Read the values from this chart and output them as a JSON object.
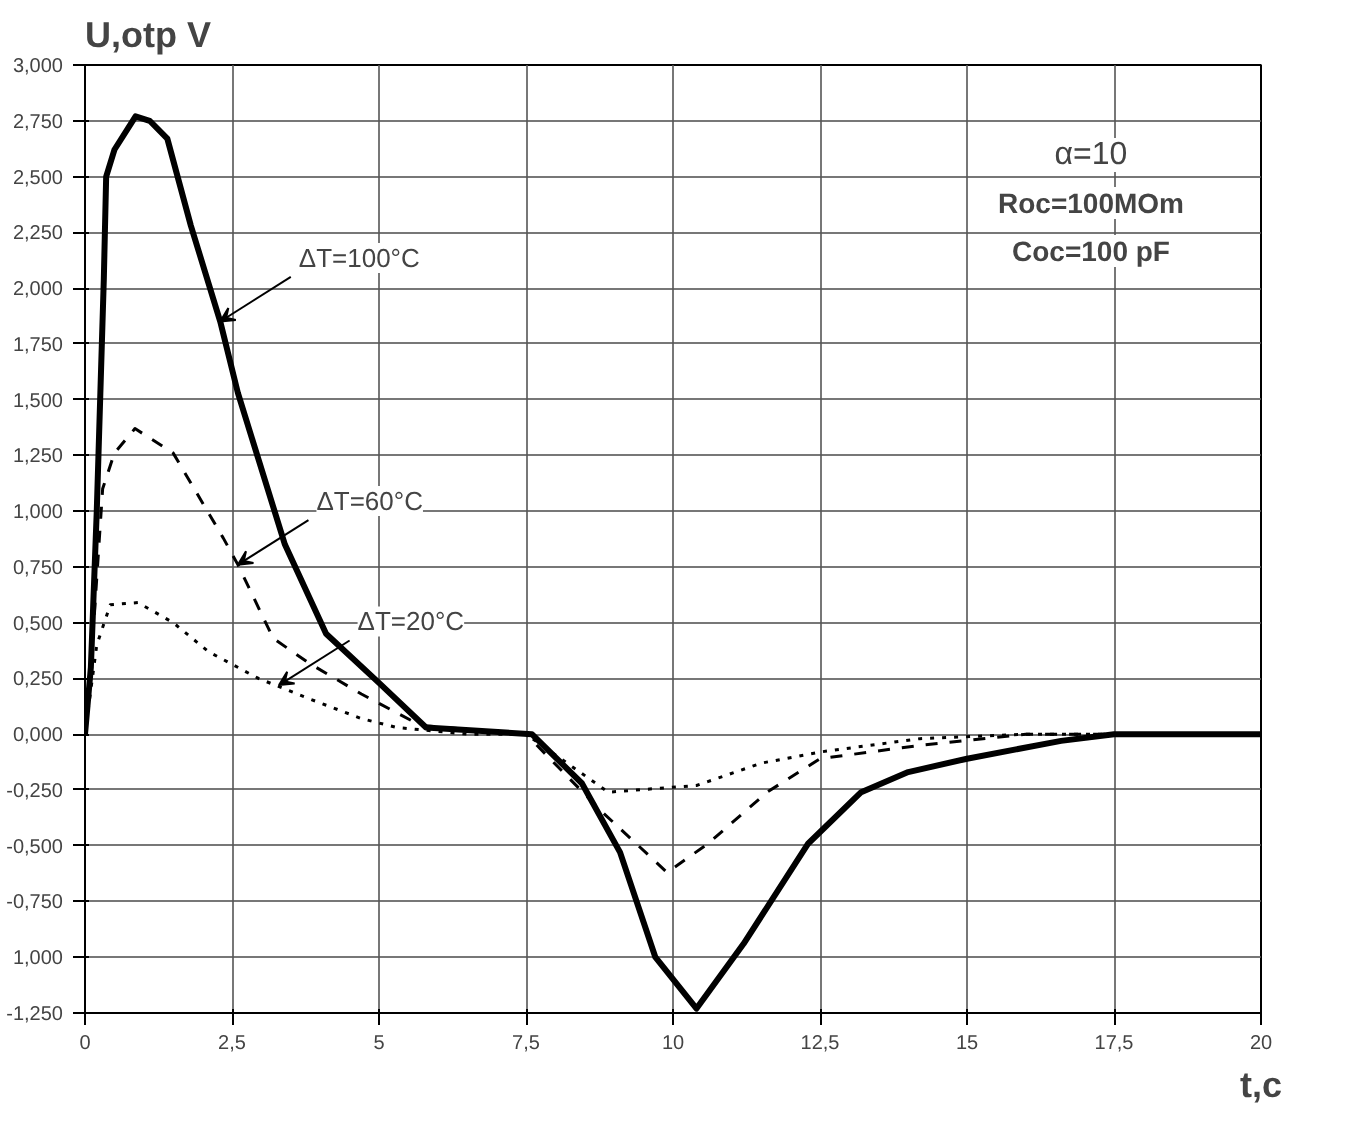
{
  "chart_data": {
    "type": "line",
    "xlabel": "t,c",
    "ylabel": "U,otp V",
    "xlim": [
      0,
      20
    ],
    "ylim": [
      -1.25,
      3.0
    ],
    "xticks": [
      0,
      {
        "value": 2.5,
        "label": "2,5"
      },
      5,
      {
        "value": 7.5,
        "label": "7,5"
      },
      10,
      {
        "value": 12.5,
        "label": "12,5"
      },
      15,
      {
        "value": 17.5,
        "label": "17,5"
      },
      20
    ],
    "yticks": [
      {
        "value": -1.25,
        "label": "-1,250"
      },
      {
        "value": -1.0,
        "label": "1,000"
      },
      {
        "value": -0.75,
        "label": "-0,750"
      },
      {
        "value": -0.5,
        "label": "-0,500"
      },
      {
        "value": -0.25,
        "label": "-0,250"
      },
      {
        "value": 0,
        "label": "0,000"
      },
      {
        "value": 0.25,
        "label": "0,250"
      },
      {
        "value": 0.5,
        "label": "0,500"
      },
      {
        "value": 0.75,
        "label": "0,750"
      },
      {
        "value": 1.0,
        "label": "1,000"
      },
      {
        "value": 1.25,
        "label": "1,250"
      },
      {
        "value": 1.5,
        "label": "1,500"
      },
      {
        "value": 1.75,
        "label": "1,750"
      },
      {
        "value": 2.0,
        "label": "2,000"
      },
      {
        "value": 2.25,
        "label": "2,250"
      },
      {
        "value": 2.5,
        "label": "2,500"
      },
      {
        "value": 2.75,
        "label": "2,750"
      },
      {
        "value": 3.0,
        "label": "3,000"
      }
    ],
    "grid": true,
    "marker": "none",
    "series": [
      {
        "color": "#000000",
        "line_style": "solid",
        "x": [
          0,
          0.1,
          0.2,
          0.32,
          0.36,
          0.5,
          0.86,
          1.1,
          1.4,
          1.8,
          2.3,
          2.6,
          3.4,
          4.1,
          5.0,
          5.8,
          7.6,
          8.45,
          9.1,
          9.7,
          10.4,
          11.2,
          12.3,
          13.2,
          14.0,
          15.0,
          16.6,
          17.5,
          20
        ],
        "values": [
          0,
          0.3,
          1.0,
          2.04,
          2.5,
          2.62,
          2.77,
          2.75,
          2.67,
          2.28,
          1.85,
          1.53,
          0.85,
          0.45,
          0.23,
          0.03,
          0,
          -0.22,
          -0.53,
          -1.0,
          -1.23,
          -0.94,
          -0.49,
          -0.26,
          -0.17,
          -0.11,
          -0.03,
          0,
          0
        ]
      },
      {
        "color": "#000000",
        "line_style": "dashed",
        "x": [
          0,
          0.15,
          0.3,
          0.5,
          0.85,
          1.5,
          2.35,
          2.6,
          3.2,
          3.8,
          4.7,
          5.7,
          7.5,
          8.8,
          9.9,
          10.6,
          11.6,
          12.5,
          14.2,
          16.0,
          20
        ],
        "values": [
          0,
          0.5,
          1.1,
          1.26,
          1.37,
          1.26,
          0.88,
          0.76,
          0.43,
          0.32,
          0.18,
          0.04,
          0,
          -0.35,
          -0.62,
          -0.49,
          -0.26,
          -0.11,
          -0.05,
          0,
          0
        ]
      },
      {
        "color": "#000000",
        "line_style": "dotted",
        "x": [
          0,
          0.2,
          0.43,
          0.9,
          1.5,
          2.1,
          2.95,
          3.8,
          4.7,
          5.3,
          6.5,
          7.5,
          8.9,
          10.4,
          11.5,
          12.5,
          14.2,
          16.0,
          20
        ],
        "values": [
          0,
          0.4,
          0.58,
          0.59,
          0.5,
          0.37,
          0.25,
          0.16,
          0.07,
          0.03,
          0,
          0,
          -0.26,
          -0.23,
          -0.13,
          -0.08,
          -0.02,
          0,
          0
        ]
      }
    ],
    "annotations": [
      {
        "text": "ΔT=100°C",
        "x": 2.3,
        "y": 1.85
      },
      {
        "text": "ΔT=60°C",
        "x": 2.6,
        "y": 0.76
      },
      {
        "text": "ΔT=20°C",
        "x": 3.3,
        "y": 0.22
      },
      "α=10",
      "Roc=100MOm",
      "Coc=100 pF"
    ]
  }
}
